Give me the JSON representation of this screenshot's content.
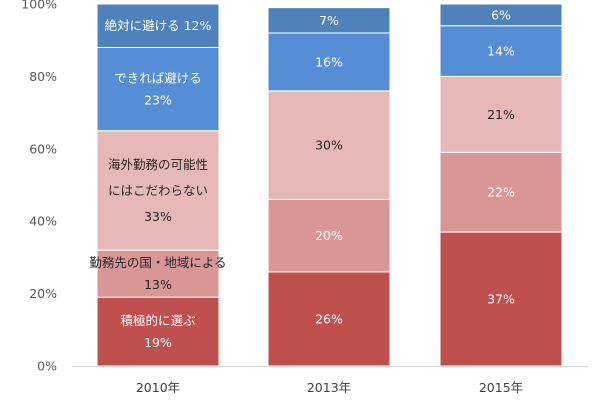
{
  "chart_data": {
    "type": "bar",
    "stacked": true,
    "percent": true,
    "categories": [
      "2010年",
      "2013年",
      "2015年"
    ],
    "series": [
      {
        "name": "積極的に選ぶ",
        "values": [
          19,
          26,
          37
        ],
        "color": "#c0504d"
      },
      {
        "name": "勤務先の国・地域による",
        "values": [
          13,
          20,
          22
        ],
        "color": "#d99694"
      },
      {
        "name": "海外勤務の可能性にはこだわらない",
        "values": [
          33,
          30,
          21
        ],
        "color": "#e6b9b8"
      },
      {
        "name": "できれば避ける",
        "values": [
          23,
          16,
          14
        ],
        "color": "#558ed5"
      },
      {
        "name": "絶対に避ける",
        "values": [
          12,
          7,
          6
        ],
        "color": "#4f81bd"
      }
    ],
    "bar_labels": [
      [
        [
          "積極的に選ぶ",
          "19%"
        ],
        [
          "勤務先の国・地域による",
          "13%"
        ],
        [
          "海外勤務の可能性",
          "にはこだわらない",
          "33%"
        ],
        [
          "できれば避ける",
          "23%"
        ],
        [
          "絶対に避ける  12%"
        ]
      ],
      [
        [
          "26%"
        ],
        [
          "20%"
        ],
        [
          "30%"
        ],
        [
          "16%"
        ],
        [
          "7%"
        ]
      ],
      [
        [
          "37%"
        ],
        [
          "22%"
        ],
        [
          "21%"
        ],
        [
          "14%"
        ],
        [
          "6%"
        ]
      ]
    ],
    "yticks": [
      "0%",
      "20%",
      "40%",
      "60%",
      "80%",
      "100%"
    ],
    "ylim": [
      0,
      100
    ],
    "grid": false,
    "legend": "none"
  }
}
